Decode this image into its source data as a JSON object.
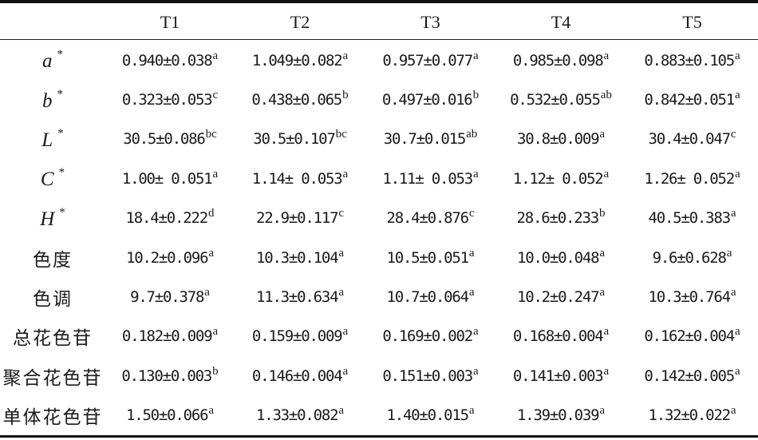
{
  "header": {
    "blank": "",
    "columns": [
      "T1",
      "T2",
      "T3",
      "T4",
      "T5"
    ]
  },
  "rows": [
    {
      "label": "a",
      "star": "*",
      "cells": [
        {
          "v": "0.940±0.038",
          "s": "a"
        },
        {
          "v": "1.049±0.082",
          "s": "a"
        },
        {
          "v": "0.957±0.077",
          "s": "a"
        },
        {
          "v": "0.985±0.098",
          "s": "a"
        },
        {
          "v": "0.883±0.105",
          "s": "a"
        }
      ]
    },
    {
      "label": "b",
      "star": "*",
      "cells": [
        {
          "v": "0.323±0.053",
          "s": "c"
        },
        {
          "v": "0.438±0.065",
          "s": "b"
        },
        {
          "v": "0.497±0.016",
          "s": "b"
        },
        {
          "v": "0.532±0.055",
          "s": "ab"
        },
        {
          "v": "0.842±0.051",
          "s": "a"
        }
      ]
    },
    {
      "label": "L",
      "star": "*",
      "cells": [
        {
          "v": "30.5±0.086",
          "s": "bc"
        },
        {
          "v": "30.5±0.107",
          "s": "bc"
        },
        {
          "v": "30.7±0.015",
          "s": "ab"
        },
        {
          "v": "30.8±0.009",
          "s": "a"
        },
        {
          "v": "30.4±0.047",
          "s": "c"
        }
      ]
    },
    {
      "label": "C",
      "star": "*",
      "cells": [
        {
          "v": "1.00± 0.051",
          "s": "a"
        },
        {
          "v": "1.14± 0.053",
          "s": "a"
        },
        {
          "v": "1.11± 0.053",
          "s": "a"
        },
        {
          "v": "1.12± 0.052",
          "s": "a"
        },
        {
          "v": "1.26± 0.052",
          "s": "a"
        }
      ]
    },
    {
      "label": "H",
      "star": "*",
      "cells": [
        {
          "v": "18.4±0.222",
          "s": "d"
        },
        {
          "v": "22.9±0.117",
          "s": "c"
        },
        {
          "v": "28.4±0.876",
          "s": "c"
        },
        {
          "v": "28.6±0.233",
          "s": "b"
        },
        {
          "v": "40.5±0.383",
          "s": "a"
        }
      ]
    },
    {
      "label": "色度",
      "star": "",
      "cells": [
        {
          "v": "10.2±0.096",
          "s": "a"
        },
        {
          "v": "10.3±0.104",
          "s": "a"
        },
        {
          "v": "10.5±0.051",
          "s": "a"
        },
        {
          "v": "10.0±0.048",
          "s": "a"
        },
        {
          "v": "9.6±0.628",
          "s": "a"
        }
      ]
    },
    {
      "label": "色调",
      "star": "",
      "cells": [
        {
          "v": "9.7±0.378",
          "s": "a"
        },
        {
          "v": "11.3±0.634",
          "s": "a"
        },
        {
          "v": "10.7±0.064",
          "s": "a"
        },
        {
          "v": "10.2±0.247",
          "s": "a"
        },
        {
          "v": "10.3±0.764",
          "s": "a"
        }
      ]
    },
    {
      "label": "总花色苷",
      "star": "",
      "cells": [
        {
          "v": "0.182±0.009",
          "s": "a"
        },
        {
          "v": "0.159±0.009",
          "s": "a"
        },
        {
          "v": "0.169±0.002",
          "s": "a"
        },
        {
          "v": "0.168±0.004",
          "s": "a"
        },
        {
          "v": "0.162±0.004",
          "s": "a"
        }
      ]
    },
    {
      "label": "聚合花色苷",
      "star": "",
      "cells": [
        {
          "v": "0.130±0.003",
          "s": "b"
        },
        {
          "v": "0.146±0.004",
          "s": "a"
        },
        {
          "v": "0.151±0.003",
          "s": "a"
        },
        {
          "v": "0.141±0.003",
          "s": "a"
        },
        {
          "v": "0.142±0.005",
          "s": "a"
        }
      ]
    },
    {
      "label": "单体花色苷",
      "star": "",
      "cells": [
        {
          "v": "1.50±0.066",
          "s": "a"
        },
        {
          "v": "1.33±0.082",
          "s": "a"
        },
        {
          "v": "1.40±0.015",
          "s": "a"
        },
        {
          "v": "1.39±0.039",
          "s": "a"
        },
        {
          "v": "1.32±0.022",
          "s": "a"
        }
      ]
    }
  ]
}
